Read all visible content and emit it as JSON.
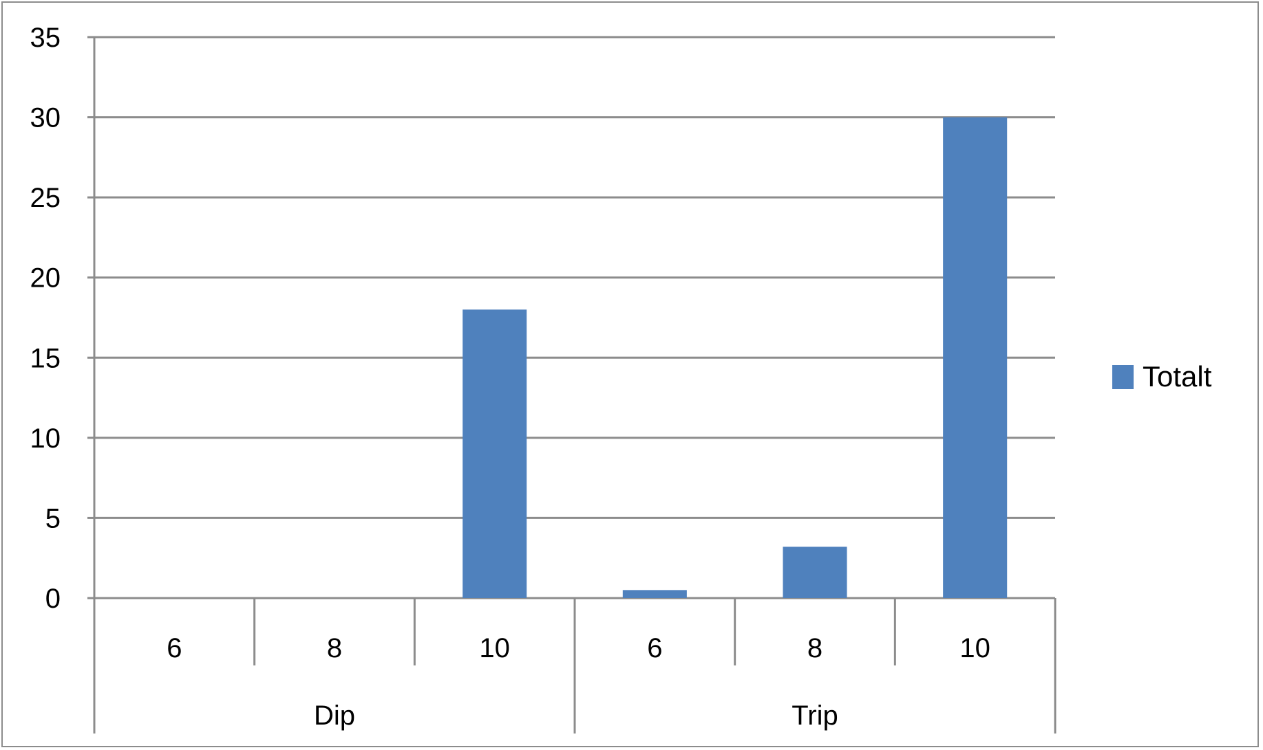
{
  "chart_data": {
    "type": "bar",
    "groups": [
      {
        "label": "Dip",
        "categories": [
          "6",
          "8",
          "10"
        ]
      },
      {
        "label": "Trip",
        "categories": [
          "6",
          "8",
          "10"
        ]
      }
    ],
    "categories": [
      "6",
      "8",
      "10",
      "6",
      "8",
      "10"
    ],
    "series": [
      {
        "name": "Totalt",
        "color": "#4F81BD",
        "values": [
          0,
          0,
          18,
          0.5,
          3.2,
          30
        ]
      }
    ],
    "yticks": [
      "0",
      "5",
      "10",
      "15",
      "20",
      "25",
      "30",
      "35"
    ],
    "ylim": [
      0,
      35
    ],
    "grid": true,
    "legend_position": "right"
  }
}
